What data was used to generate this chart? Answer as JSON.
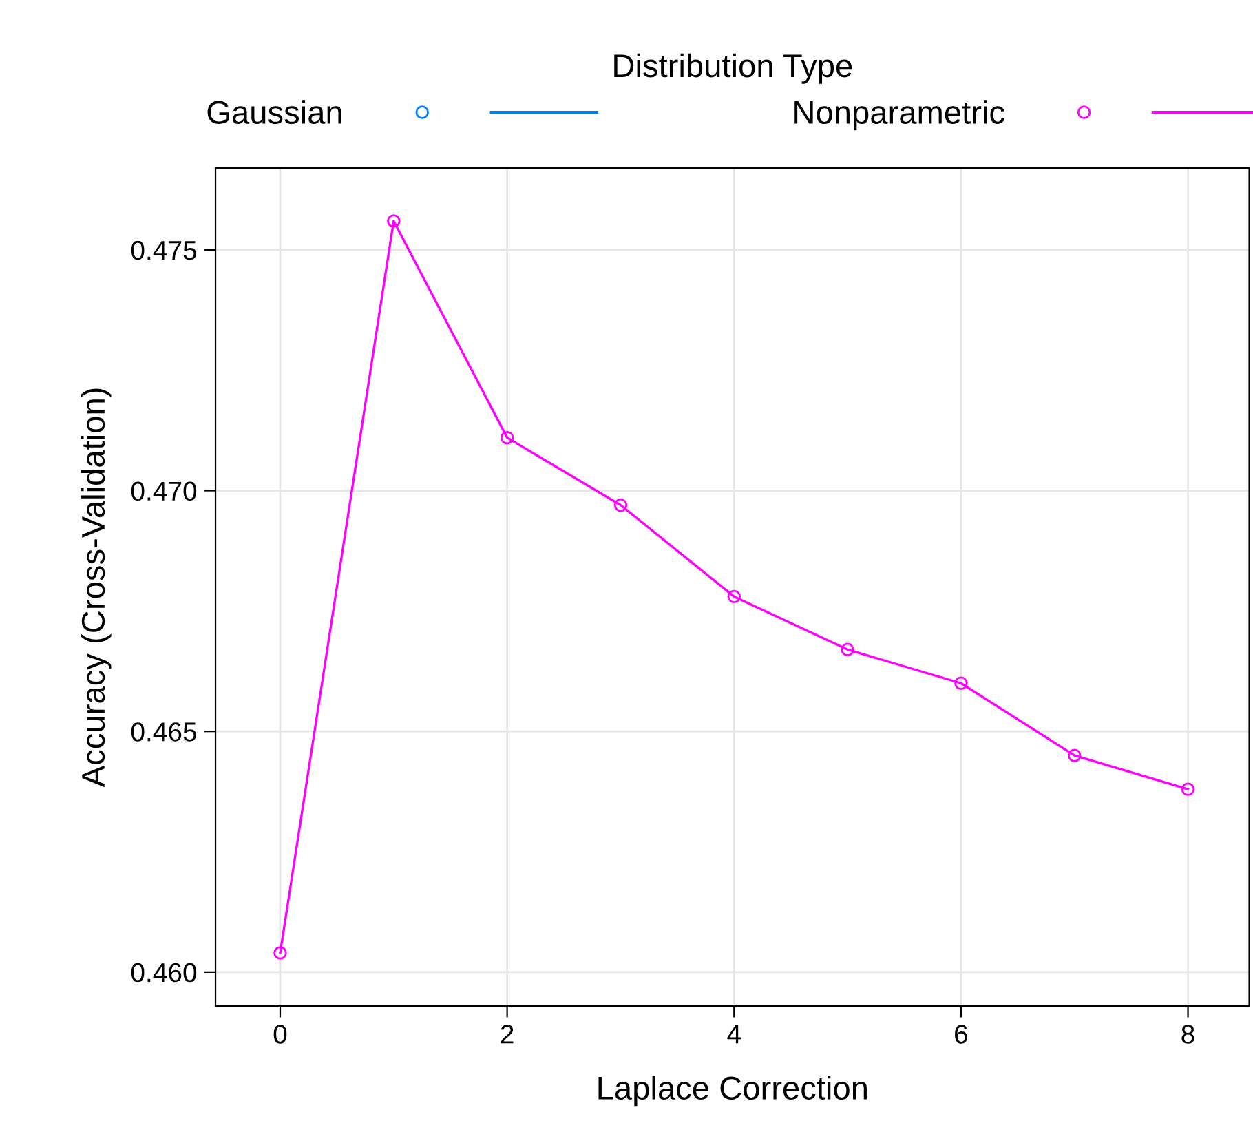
{
  "chart_data": {
    "type": "line",
    "xlabel": "Laplace Correction",
    "ylabel": "Accuracy (Cross-Validation)",
    "legend_title": "Distribution Type",
    "x": [
      0,
      1,
      2,
      3,
      4,
      5,
      6,
      7,
      8
    ],
    "series": [
      {
        "name": "Gaussian",
        "color": "#0080ff",
        "values": [
          null,
          null,
          null,
          null,
          null,
          null,
          null,
          null,
          null
        ]
      },
      {
        "name": "Nonparametric",
        "color": "#ff00ff",
        "values": [
          0.4604,
          0.4756,
          0.4711,
          0.4697,
          0.4678,
          0.4667,
          0.466,
          0.4645,
          0.4638
        ]
      }
    ],
    "xlim": [
      -0.57,
      8.54
    ],
    "ylim": [
      0.4593,
      0.4767
    ],
    "xticks": [
      0,
      2,
      4,
      6,
      8
    ],
    "yticks": [
      {
        "value": 0.46,
        "label": "0.460"
      },
      {
        "value": 0.465,
        "label": "0.465"
      },
      {
        "value": 0.47,
        "label": "0.470"
      },
      {
        "value": 0.475,
        "label": "0.475"
      }
    ],
    "grid": true,
    "legend": "top",
    "marker": "circle",
    "line_style": "solid"
  }
}
